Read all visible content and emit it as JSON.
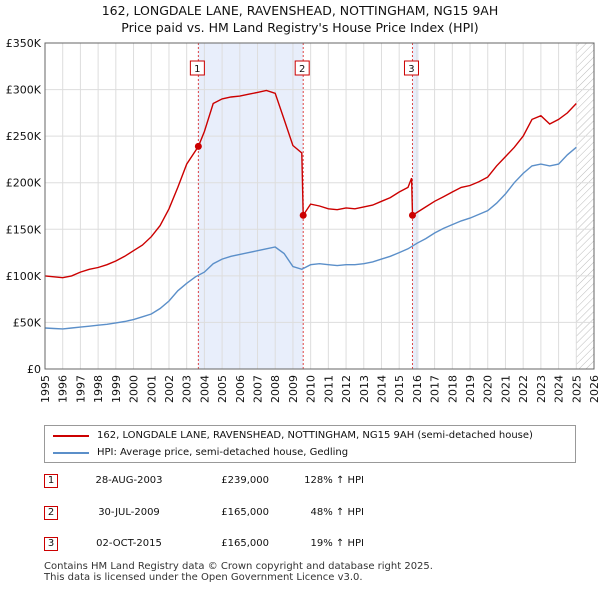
{
  "title_line1": "162, LONGDALE LANE, RAVENSHEAD, NOTTINGHAM, NG15 9AH",
  "title_line2": "Price paid vs. HM Land Registry's House Price Index (HPI)",
  "colors": {
    "property": "#cc0000",
    "hpi": "#5b8fc9",
    "shade": "#e8eefb",
    "grid": "#dddddd",
    "marker_border": "#cc0000"
  },
  "legend": {
    "property_label": "162, LONGDALE LANE, RAVENSHEAD, NOTTINGHAM, NG15 9AH (semi-detached house)",
    "hpi_label": "HPI: Average price, semi-detached house, Gedling"
  },
  "transactions": [
    {
      "num": "1",
      "date": "28-AUG-2003",
      "price": "£239,000",
      "hpi": "128% ↑ HPI"
    },
    {
      "num": "2",
      "date": "30-JUL-2009",
      "price": "£165,000",
      "hpi": "48% ↑ HPI"
    },
    {
      "num": "3",
      "date": "02-OCT-2015",
      "price": "£165,000",
      "hpi": "19% ↑ HPI"
    }
  ],
  "footer": {
    "line1": "Contains HM Land Registry data © Crown copyright and database right 2025.",
    "line2": "This data is licensed under the Open Government Licence v3.0."
  },
  "chart_data": {
    "type": "line",
    "title": "162, LONGDALE LANE, RAVENSHEAD, NOTTINGHAM, NG15 9AH",
    "subtitle": "Price paid vs. HM Land Registry's House Price Index (HPI)",
    "xlabel": "",
    "ylabel": "",
    "xlim": [
      1995,
      2026
    ],
    "ylim": [
      0,
      350000
    ],
    "x_ticks": [
      "1995",
      "1996",
      "1997",
      "1998",
      "1999",
      "2000",
      "2001",
      "2002",
      "2003",
      "2004",
      "2005",
      "2006",
      "2007",
      "2008",
      "2009",
      "2010",
      "2011",
      "2012",
      "2013",
      "2014",
      "2015",
      "2016",
      "2017",
      "2018",
      "2019",
      "2020",
      "2021",
      "2022",
      "2023",
      "2024",
      "2025",
      "2026"
    ],
    "y_ticks": [
      {
        "value": 0,
        "label": "£0"
      },
      {
        "value": 50000,
        "label": "£50K"
      },
      {
        "value": 100000,
        "label": "£100K"
      },
      {
        "value": 150000,
        "label": "£150K"
      },
      {
        "value": 200000,
        "label": "£200K"
      },
      {
        "value": 250000,
        "label": "£250K"
      },
      {
        "value": 300000,
        "label": "£300K"
      },
      {
        "value": 350000,
        "label": "£350K"
      }
    ],
    "grid": true,
    "shaded_ranges": [
      [
        2003.66,
        2009.58
      ],
      [
        2015.75,
        2016.1
      ]
    ],
    "future_hatch_from": 2025.0,
    "events": [
      {
        "label": "1",
        "x": 2003.66,
        "y": 239000
      },
      {
        "label": "2",
        "x": 2009.58,
        "y": 165000
      },
      {
        "label": "3",
        "x": 2015.75,
        "y": 165000
      }
    ],
    "series": [
      {
        "name": "162, LONGDALE LANE, RAVENSHEAD, NOTTINGHAM, NG15 9AH (semi-detached house)",
        "color": "#cc0000",
        "x": [
          1995.0,
          1995.5,
          1996.0,
          1996.5,
          1997.0,
          1997.5,
          1998.0,
          1998.5,
          1999.0,
          1999.5,
          2000.0,
          2000.5,
          2001.0,
          2001.5,
          2002.0,
          2002.5,
          2003.0,
          2003.66,
          2004.0,
          2004.5,
          2005.0,
          2005.5,
          2006.0,
          2006.5,
          2007.0,
          2007.5,
          2008.0,
          2008.5,
          2009.0,
          2009.5,
          2009.58,
          2010.0,
          2010.5,
          2011.0,
          2011.5,
          2012.0,
          2012.5,
          2013.0,
          2013.5,
          2014.0,
          2014.5,
          2015.0,
          2015.5,
          2015.7,
          2015.75,
          2016.0,
          2016.5,
          2017.0,
          2017.5,
          2018.0,
          2018.5,
          2019.0,
          2019.5,
          2020.0,
          2020.5,
          2021.0,
          2021.5,
          2022.0,
          2022.5,
          2023.0,
          2023.5,
          2024.0,
          2024.5,
          2025.0
        ],
        "y": [
          100000,
          99000,
          98000,
          100000,
          104000,
          107000,
          109000,
          112000,
          116000,
          121000,
          127000,
          133000,
          142000,
          154000,
          172000,
          195000,
          220000,
          239000,
          255000,
          285000,
          290000,
          292000,
          293000,
          295000,
          297000,
          299000,
          296000,
          268000,
          240000,
          232000,
          165000,
          177000,
          175000,
          172000,
          171000,
          173000,
          172000,
          174000,
          176000,
          180000,
          184000,
          190000,
          195000,
          205000,
          165000,
          168000,
          174000,
          180000,
          185000,
          190000,
          195000,
          197000,
          201000,
          206000,
          218000,
          228000,
          238000,
          250000,
          268000,
          272000,
          263000,
          268000,
          275000,
          285000
        ]
      },
      {
        "name": "HPI: Average price, semi-detached house, Gedling",
        "color": "#5b8fc9",
        "x": [
          1995.0,
          1995.5,
          1996.0,
          1996.5,
          1997.0,
          1997.5,
          1998.0,
          1998.5,
          1999.0,
          1999.5,
          2000.0,
          2000.5,
          2001.0,
          2001.5,
          2002.0,
          2002.5,
          2003.0,
          2003.5,
          2004.0,
          2004.5,
          2005.0,
          2005.5,
          2006.0,
          2006.5,
          2007.0,
          2007.5,
          2008.0,
          2008.5,
          2009.0,
          2009.5,
          2010.0,
          2010.5,
          2011.0,
          2011.5,
          2012.0,
          2012.5,
          2013.0,
          2013.5,
          2014.0,
          2014.5,
          2015.0,
          2015.5,
          2016.0,
          2016.5,
          2017.0,
          2017.5,
          2018.0,
          2018.5,
          2019.0,
          2019.5,
          2020.0,
          2020.5,
          2021.0,
          2021.5,
          2022.0,
          2022.5,
          2023.0,
          2023.5,
          2024.0,
          2024.5,
          2025.0
        ],
        "y": [
          44000,
          43500,
          43000,
          44000,
          45000,
          46000,
          47000,
          48000,
          49500,
          51000,
          53000,
          56000,
          59000,
          65000,
          73000,
          84000,
          92000,
          99000,
          104000,
          113000,
          118000,
          121000,
          123000,
          125000,
          127000,
          129000,
          131000,
          124000,
          110000,
          107000,
          112000,
          113000,
          112000,
          111000,
          112000,
          112000,
          113000,
          115000,
          118000,
          121000,
          125000,
          129000,
          135000,
          140000,
          146000,
          151000,
          155000,
          159000,
          162000,
          166000,
          170000,
          178000,
          188000,
          200000,
          210000,
          218000,
          220000,
          218000,
          220000,
          230000,
          238000
        ]
      }
    ]
  }
}
